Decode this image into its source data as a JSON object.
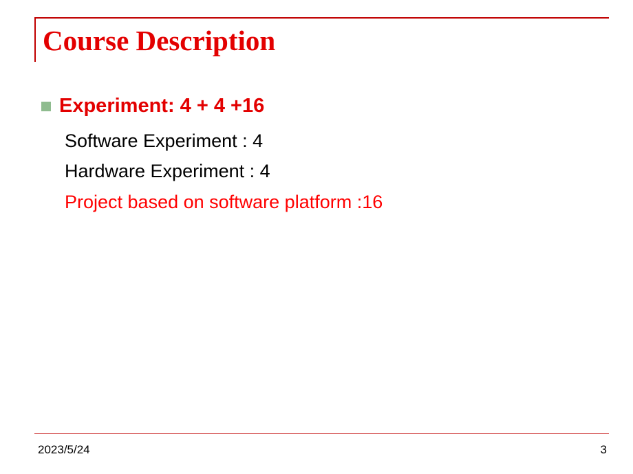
{
  "title": "Course Description",
  "bullet": {
    "label": "Experiment:  4 + 4 +16"
  },
  "lines": {
    "software": "Software  Experiment :     4",
    "hardware": "Hardware Experiment :      4",
    "project": "Project  based on software platform :16"
  },
  "footer": {
    "date": "2023/5/24",
    "page": "3"
  },
  "colors": {
    "title_color": "#e30000",
    "border_color": "#c00000",
    "accent_red": "#ff0000",
    "bullet_square": "#8fbc8f",
    "text_black": "#000000"
  }
}
